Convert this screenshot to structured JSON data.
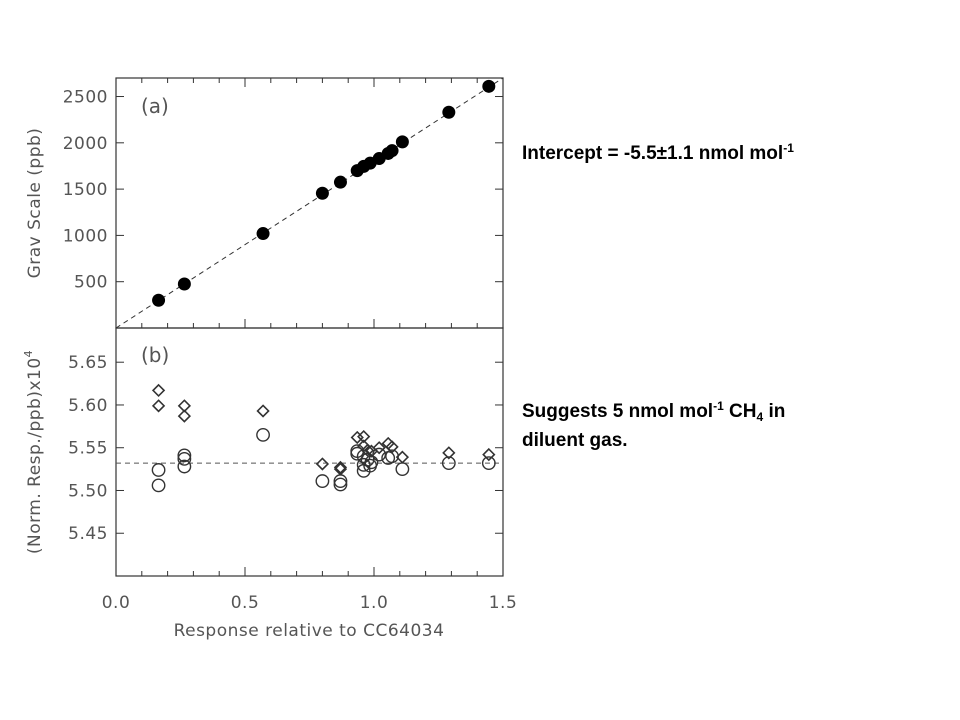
{
  "chart_data": [
    {
      "type": "scatter",
      "panel_label": "(a)",
      "ylabel": "Grav Scale (ppb)",
      "xlim": [
        0.0,
        1.5
      ],
      "ylim": [
        0,
        2700
      ],
      "yticks": [
        "500",
        "1000",
        "1500",
        "2000",
        "2500"
      ],
      "ytick_values": [
        500,
        1000,
        1500,
        2000,
        2500
      ],
      "fit_line": {
        "x": [
          0.0,
          1.5
        ],
        "y": [
          0,
          2700
        ]
      },
      "series": [
        {
          "marker": "filled-circle",
          "x": [
            0.165,
            0.265,
            0.57,
            0.8,
            0.87,
            0.935,
            0.96,
            0.985,
            1.02,
            1.055,
            1.07,
            1.11,
            1.29,
            1.445
          ],
          "y": [
            300,
            475,
            1020,
            1455,
            1575,
            1700,
            1745,
            1780,
            1830,
            1885,
            1915,
            2010,
            2330,
            2610
          ]
        }
      ]
    },
    {
      "type": "scatter",
      "panel_label": "(b)",
      "ylabel": "(Norm. Resp./ppb)x10",
      "ylabel_sup": "4",
      "xlabel": "Response relative to CC64034",
      "xlim": [
        0.0,
        1.5
      ],
      "ylim": [
        5.4,
        5.69
      ],
      "yticks": [
        "5.45",
        "5.50",
        "5.55",
        "5.60",
        "5.65"
      ],
      "ytick_values": [
        5.45,
        5.5,
        5.55,
        5.6,
        5.65
      ],
      "xticks": [
        "0.0",
        "0.5",
        "1.0",
        "1.5"
      ],
      "xtick_values": [
        0.0,
        0.5,
        1.0,
        1.5
      ],
      "reference_line": 5.532,
      "series": [
        {
          "marker": "open-diamond",
          "x": [
            0.165,
            0.165,
            0.265,
            0.265,
            0.57,
            0.8,
            0.87,
            0.87,
            0.935,
            0.96,
            0.96,
            0.975,
            0.99,
            1.02,
            1.055,
            1.07,
            1.11,
            1.29,
            1.445
          ],
          "y": [
            5.617,
            5.599,
            5.599,
            5.587,
            5.593,
            5.531,
            5.527,
            5.525,
            5.562,
            5.563,
            5.552,
            5.547,
            5.546,
            5.55,
            5.555,
            5.551,
            5.539,
            5.544,
            5.542
          ]
        },
        {
          "marker": "open-circle",
          "x": [
            0.165,
            0.165,
            0.265,
            0.265,
            0.265,
            0.57,
            0.8,
            0.87,
            0.87,
            0.935,
            0.935,
            0.96,
            0.96,
            0.96,
            0.975,
            0.985,
            0.99,
            1.02,
            1.055,
            1.07,
            1.11,
            1.29,
            1.445
          ],
          "y": [
            5.524,
            5.506,
            5.541,
            5.537,
            5.528,
            5.565,
            5.511,
            5.511,
            5.507,
            5.546,
            5.543,
            5.54,
            5.53,
            5.523,
            5.536,
            5.529,
            5.533,
            5.542,
            5.538,
            5.54,
            5.525,
            5.532,
            5.532
          ]
        }
      ]
    }
  ],
  "notes": {
    "intercept_prefix": "Intercept = -5.5±1.1 nmol mol",
    "intercept_sup": "-1",
    "suggests_prefix": "Suggests 5 nmol mol",
    "suggests_sup": "-1",
    "suggests_species": " CH",
    "suggests_sub": "4",
    "suggests_suffix": " in",
    "suggests_line2": "diluent gas."
  }
}
